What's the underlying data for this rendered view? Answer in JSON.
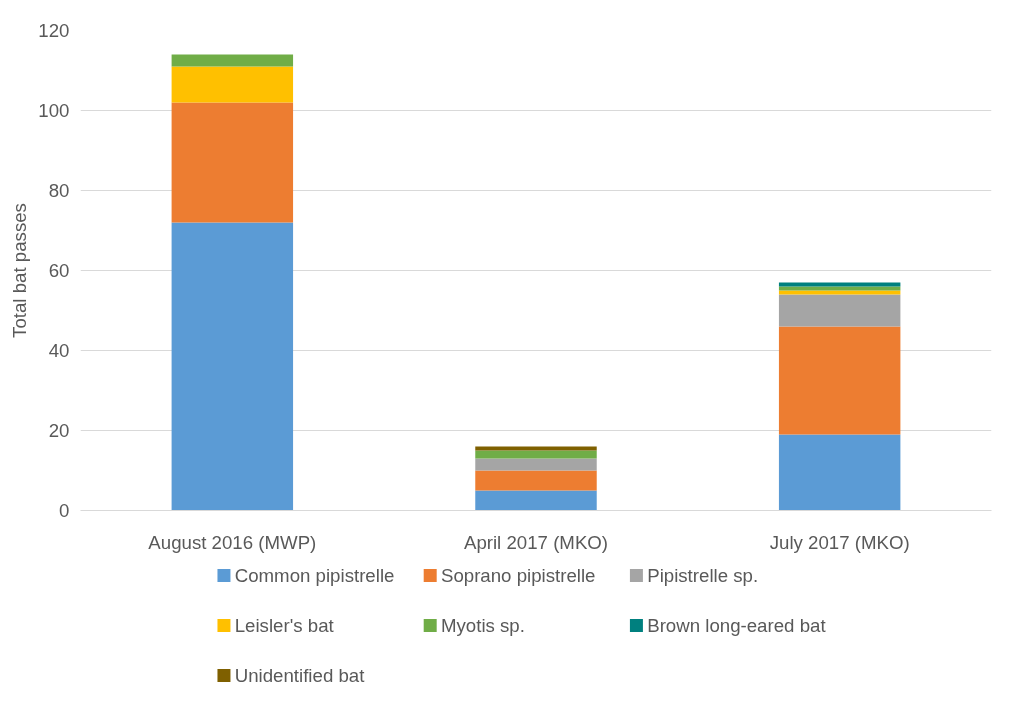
{
  "chart_data": {
    "type": "bar",
    "stacked": true,
    "ylabel": "Total bat passes",
    "categories": [
      "August 2016 (MWP)",
      "April 2017 (MKO)",
      "July 2017 (MKO)"
    ],
    "series": [
      {
        "name": "Common pipistrelle",
        "color": "#5b9bd5",
        "values": [
          72,
          5,
          19
        ]
      },
      {
        "name": "Soprano pipistrelle",
        "color": "#ed7d31",
        "values": [
          30,
          5,
          27
        ]
      },
      {
        "name": "Pipistrelle sp.",
        "color": "#a5a5a5",
        "values": [
          null,
          3,
          8
        ]
      },
      {
        "name": "Leisler's bat",
        "color": "#ffc000",
        "values": [
          9,
          null,
          1
        ]
      },
      {
        "name": "Myotis sp.",
        "color": "#70ad47",
        "values": [
          3,
          2,
          1
        ]
      },
      {
        "name": "Brown long-eared bat",
        "color": "#00807f",
        "values": [
          null,
          null,
          1
        ]
      },
      {
        "name": "Unidentified bat",
        "color": "#7f6000",
        "values": [
          null,
          1,
          null
        ]
      }
    ],
    "ylim": [
      0,
      120
    ],
    "yticks": [
      0,
      20,
      40,
      60,
      80,
      100,
      120
    ],
    "grid": "y",
    "legend": "bottom"
  }
}
